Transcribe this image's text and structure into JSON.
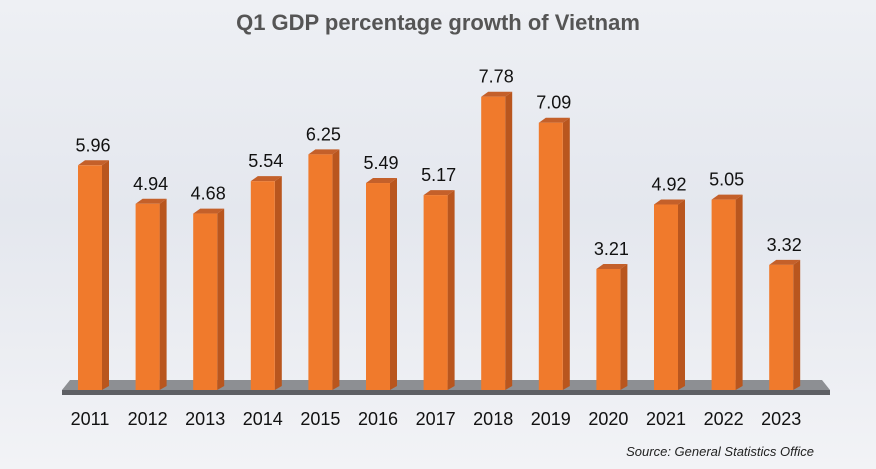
{
  "chart_data": {
    "type": "bar",
    "title": "Q1 GDP percentage growth of Vietnam",
    "categories": [
      "2011",
      "2012",
      "2013",
      "2014",
      "2015",
      "2016",
      "2017",
      "2018",
      "2019",
      "2020",
      "2021",
      "2022",
      "2023"
    ],
    "values": [
      5.96,
      4.94,
      4.68,
      5.54,
      6.25,
      5.49,
      5.17,
      7.78,
      7.09,
      3.21,
      4.92,
      5.05,
      3.32
    ],
    "data_labels": [
      "5.96",
      "4.94",
      "4.68",
      "5.54",
      "6.25",
      "5.49",
      "5.17",
      "7.78",
      "7.09",
      "3.21",
      "4.92",
      "5.05",
      "3.32"
    ],
    "xlabel": "",
    "ylabel": "",
    "ylim": [
      0,
      9
    ],
    "grid": false,
    "bar_color": "#F07A2C",
    "bar_side_color": "#B9561E",
    "source": "Source: General Statistics Office"
  }
}
